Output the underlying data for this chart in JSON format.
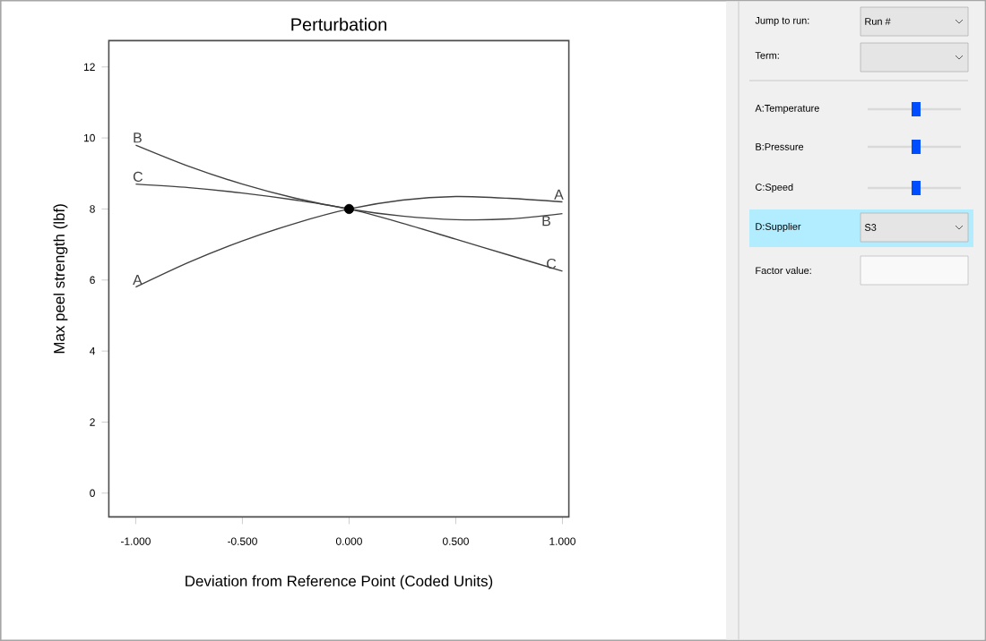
{
  "chart_data": [
    {
      "type": "line",
      "title": "Perturbation",
      "xlabel": "Deviation from Reference Point (Coded Units)",
      "ylabel": "Max peel strength (lbf)",
      "x": [
        -1,
        -0.75,
        -0.5,
        -0.25,
        0,
        0.25,
        0.5,
        0.75,
        1
      ],
      "series": [
        {
          "name": "A",
          "color": "#404040",
          "values": [
            5.8,
            6.5,
            7.1,
            7.6,
            8.0,
            8.25,
            8.35,
            8.3,
            8.2
          ]
        },
        {
          "name": "B",
          "color": "#404040",
          "values": [
            9.8,
            9.2,
            8.7,
            8.3,
            8.0,
            7.8,
            7.7,
            7.72,
            7.87
          ]
        },
        {
          "name": "C",
          "color": "#404040",
          "values": [
            8.7,
            8.6,
            8.45,
            8.25,
            8.0,
            7.6,
            7.15,
            6.7,
            6.25
          ]
        },
        {
          "type": "scatter",
          "color": "#000000",
          "x": [
            0
          ],
          "values": [
            8.0
          ],
          "marker": "circle"
        }
      ],
      "xlim": [
        -1.126,
        1.03
      ],
      "ylim": [
        -0.67,
        12.74
      ],
      "xticks": [
        {
          "value": -1,
          "label": "-1.000"
        },
        {
          "value": -0.5,
          "label": "-0.500"
        },
        {
          "value": 0,
          "label": "0.000"
        },
        {
          "value": 0.5,
          "label": "0.500"
        },
        {
          "value": 1,
          "label": "1.000"
        }
      ],
      "yticks": [
        0,
        2,
        4,
        6,
        8,
        10,
        12
      ]
    },
    {
      "type": "other",
      "annotations": [
        "Jump to run:",
        "Run #",
        "Term:",
        "A:Temperature",
        "B:Pressure",
        "C:Speed",
        "D:Supplier",
        "S3",
        "Factor value:"
      ]
    }
  ]
}
